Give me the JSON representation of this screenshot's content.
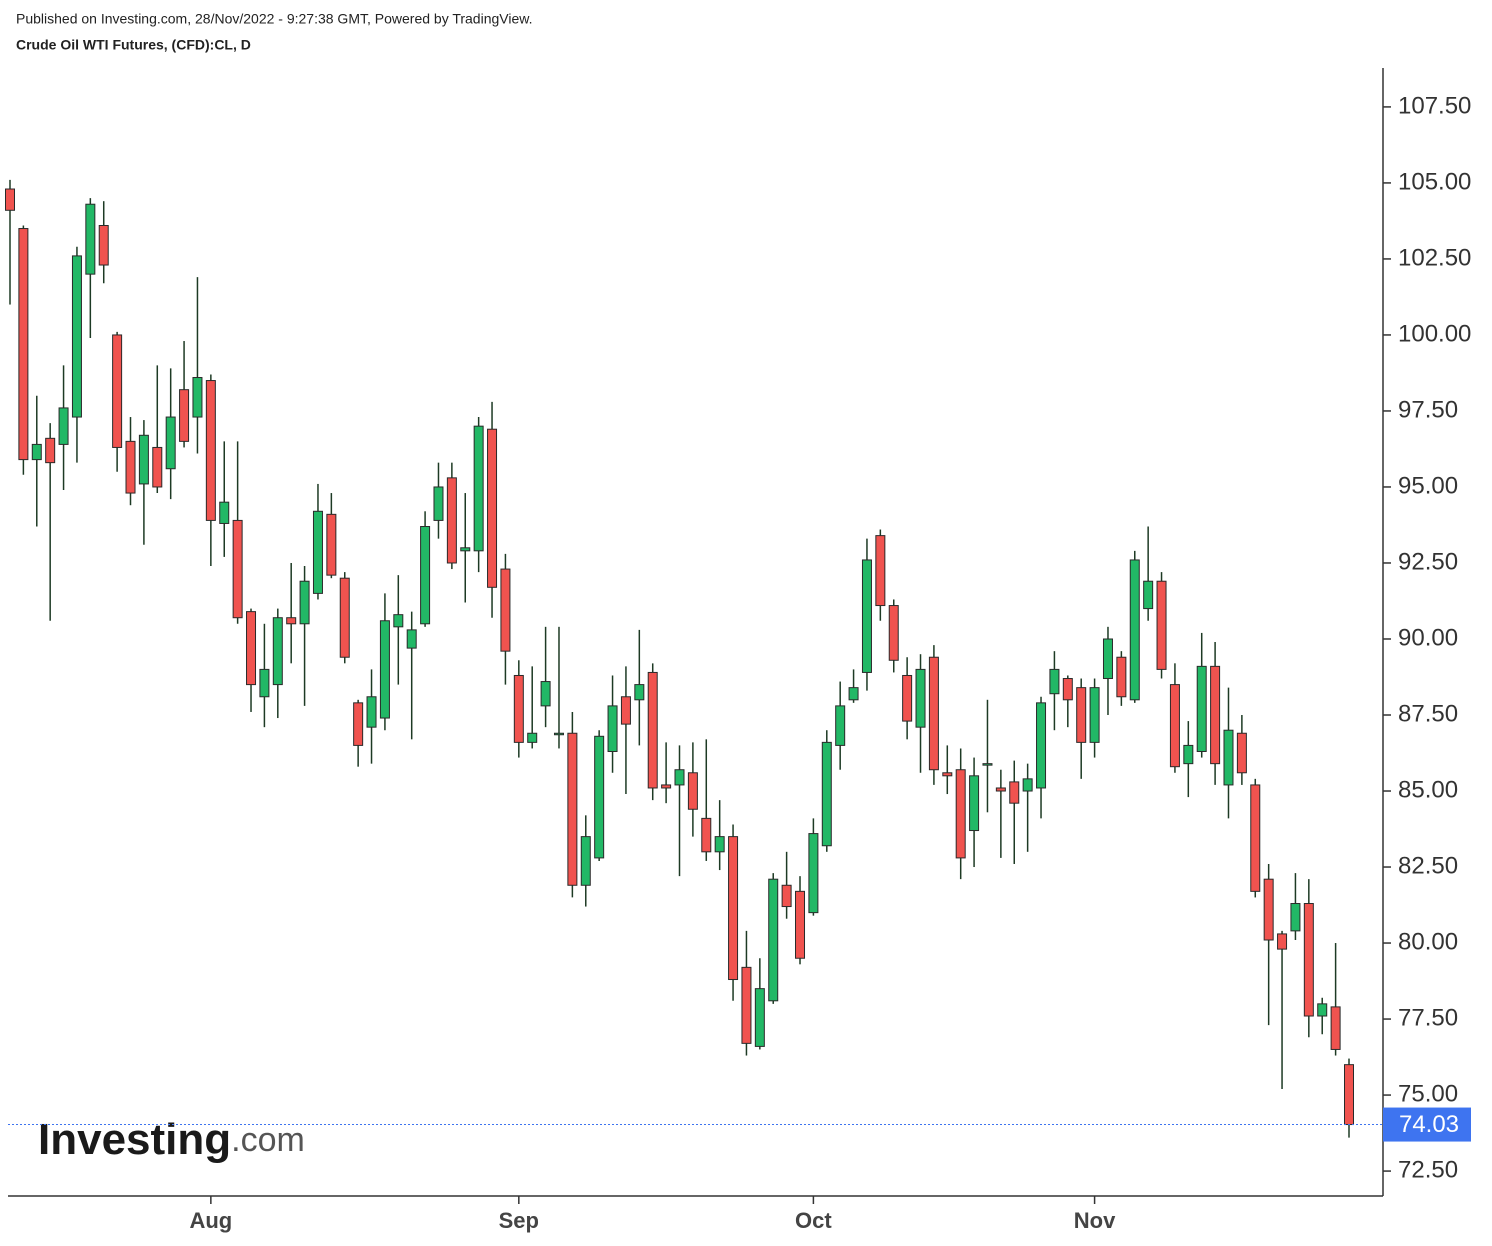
{
  "header": {
    "published": "Published on Investing.com, 28/Nov/2022 - 9:27:38 GMT, Powered by TradingView.",
    "instrument": "Crude Oil WTI Futures, (CFD):CL, D"
  },
  "logo": {
    "name": "Investing",
    "suffix": ".com"
  },
  "chart_data": {
    "type": "candlestick",
    "categories": [
      null,
      null,
      null,
      null,
      null,
      null,
      null,
      null,
      null,
      null,
      null,
      null,
      null,
      null,
      null,
      "Aug",
      null,
      null,
      null,
      null,
      null,
      null,
      null,
      null,
      null,
      null,
      null,
      null,
      null,
      null,
      null,
      null,
      null,
      null,
      null,
      null,
      null,
      null,
      "Sep",
      null,
      null,
      null,
      null,
      null,
      null,
      null,
      null,
      null,
      null,
      null,
      null,
      null,
      null,
      null,
      null,
      null,
      null,
      null,
      null,
      null,
      "Oct",
      null,
      null,
      null,
      null,
      null,
      null,
      null,
      null,
      null,
      null,
      null,
      null,
      null,
      null,
      null,
      null,
      null,
      null,
      null,
      null,
      "Nov",
      null,
      null,
      null,
      null,
      null,
      null,
      null,
      null,
      null,
      null,
      null,
      null,
      null,
      null,
      null,
      null,
      null,
      null,
      null
    ],
    "open": [
      104.8,
      103.5,
      95.9,
      96.6,
      96.4,
      97.3,
      102,
      103.6,
      100,
      96.5,
      95.1,
      96.3,
      95.6,
      98.2,
      97.3,
      98.5,
      93.8,
      93.9,
      90.9,
      88.1,
      88.5,
      90.7,
      90.5,
      91.5,
      94.1,
      92,
      87.9,
      87.1,
      87.4,
      90.4,
      89.7,
      90.5,
      93.9,
      95.3,
      92.9,
      92.9,
      96.9,
      92.3,
      88.8,
      86.6,
      87.8,
      86.9,
      86.9,
      81.9,
      82.8,
      86.3,
      88.1,
      88,
      88.9,
      85.2,
      85.2,
      85.6,
      84.1,
      83,
      83.5,
      79.2,
      76.6,
      78.1,
      81.9,
      81.7,
      81,
      83.2,
      86.5,
      88,
      88.9,
      93.4,
      91.1,
      88.8,
      87.1,
      89.4,
      85.6,
      85.7,
      83.7,
      85.9,
      85.1,
      85.3,
      85,
      85.1,
      88.2,
      88.7,
      88.4,
      86.6,
      88.7,
      89.4,
      88,
      91,
      91.9,
      88.5,
      85.9,
      86.3,
      89.1,
      85.2,
      86.9,
      85.2,
      82.1,
      80.3,
      80.4,
      81.3,
      77.6,
      77.9,
      76
    ],
    "high": [
      105.1,
      103.6,
      98,
      97.1,
      99,
      102.9,
      104.5,
      104.4,
      100.1,
      97.3,
      97.2,
      99,
      98.9,
      99.8,
      101.9,
      98.7,
      96.5,
      96.5,
      91,
      90.5,
      91,
      92.5,
      92.4,
      95.1,
      94.8,
      92.2,
      88,
      89,
      91.5,
      92.1,
      90.9,
      94.2,
      95.8,
      95.8,
      94.8,
      97.3,
      97.8,
      92.8,
      89.3,
      89.1,
      90.4,
      90.4,
      87.6,
      84.2,
      87,
      88.8,
      89.1,
      90.3,
      89.2,
      86.6,
      86.5,
      86.6,
      86.7,
      84.7,
      83.9,
      80.4,
      79.5,
      82.3,
      83,
      82.2,
      84.1,
      87,
      88.6,
      89,
      93.3,
      93.6,
      91.3,
      89.4,
      89.5,
      89.8,
      86.5,
      86.4,
      86.1,
      88,
      85.7,
      86,
      85.9,
      88.1,
      89.6,
      88.8,
      88.7,
      88.7,
      90.4,
      89.6,
      92.9,
      93.7,
      92.2,
      89.2,
      87.3,
      90.2,
      89.9,
      88.4,
      87.5,
      85.4,
      82.6,
      80.4,
      82.3,
      82.1,
      78.2,
      80,
      76.2
    ],
    "low": [
      101,
      95.4,
      93.7,
      90.6,
      94.9,
      95.8,
      99.9,
      101.7,
      95.5,
      94.4,
      93.1,
      94.8,
      94.6,
      96.3,
      96.1,
      92.4,
      92.7,
      90.5,
      87.6,
      87.1,
      87.4,
      89.2,
      87.8,
      91.3,
      92,
      89.2,
      85.8,
      85.9,
      87,
      88.5,
      86.7,
      90.4,
      93.3,
      92.3,
      91.2,
      92.2,
      90.7,
      88.5,
      86.1,
      86.4,
      87.1,
      86.4,
      81.5,
      81.2,
      82.7,
      85.6,
      84.9,
      86.5,
      84.7,
      84.6,
      82.2,
      83.5,
      82.7,
      82.4,
      78.1,
      76.3,
      76.5,
      78,
      80.8,
      79.3,
      80.9,
      83,
      85.7,
      87.9,
      88.3,
      90.6,
      88.9,
      86.7,
      85.6,
      85.2,
      84.9,
      82.1,
      82.5,
      84.3,
      82.8,
      82.6,
      83,
      84.1,
      87,
      87.1,
      85.4,
      86.1,
      87.5,
      87.8,
      87.9,
      90.6,
      88.7,
      85.6,
      84.8,
      86.1,
      85.2,
      84.1,
      85.2,
      81.5,
      77.3,
      75.2,
      80.1,
      76.9,
      77,
      76.3,
      73.6
    ],
    "close": [
      104.1,
      95.9,
      96.4,
      95.8,
      97.6,
      102.6,
      104.3,
      102.3,
      96.3,
      94.8,
      96.7,
      95,
      97.3,
      96.5,
      98.6,
      93.9,
      94.5,
      90.7,
      88.5,
      89,
      90.7,
      90.5,
      91.9,
      94.2,
      92.1,
      89.4,
      86.5,
      88.1,
      90.6,
      90.8,
      90.3,
      93.7,
      95,
      92.5,
      93,
      97,
      91.7,
      89.6,
      86.6,
      86.9,
      88.6,
      86.9,
      81.9,
      83.5,
      86.8,
      87.8,
      87.2,
      88.5,
      85.1,
      85.1,
      85.7,
      84.4,
      83,
      83.5,
      78.8,
      76.7,
      78.5,
      82.1,
      81.2,
      79.5,
      83.6,
      86.6,
      87.8,
      88.4,
      92.6,
      91.1,
      89.3,
      87.3,
      89,
      85.7,
      85.5,
      82.8,
      85.5,
      85.9,
      85,
      84.6,
      85.4,
      87.9,
      89,
      88,
      86.6,
      88.4,
      90,
      88.1,
      92.6,
      91.9,
      89,
      85.8,
      86.5,
      89.1,
      85.9,
      87,
      85.6,
      81.7,
      80.1,
      79.8,
      81.3,
      77.6,
      78,
      76.5,
      74.03
    ],
    "up_color": "#22b866",
    "down_color": "#f0534f",
    "last_price_color": "#3e74f0",
    "last_price": 74.03,
    "ylim": [
      71.68,
      108.78
    ],
    "yticks": [
      {
        "value": 72.5,
        "label": "72.50"
      },
      {
        "value": 75,
        "label": "75.00"
      },
      {
        "value": 77.5,
        "label": "77.50"
      },
      {
        "value": 80,
        "label": "80.00"
      },
      {
        "value": 82.5,
        "label": "82.50"
      },
      {
        "value": 85,
        "label": "85.00"
      },
      {
        "value": 87.5,
        "label": "87.50"
      },
      {
        "value": 90,
        "label": "90.00"
      },
      {
        "value": 92.5,
        "label": "92.50"
      },
      {
        "value": 95,
        "label": "95.00"
      },
      {
        "value": 97.5,
        "label": "97.50"
      },
      {
        "value": 100,
        "label": "100.00"
      },
      {
        "value": 102.5,
        "label": "102.50"
      },
      {
        "value": 105,
        "label": "105.00"
      },
      {
        "value": 107.5,
        "label": "107.50"
      }
    ]
  }
}
